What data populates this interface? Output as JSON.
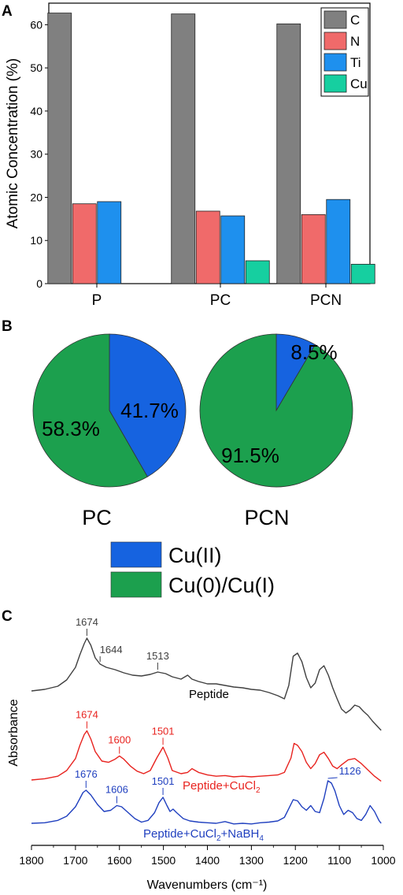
{
  "panels": {
    "a": {
      "letter": "A"
    },
    "b": {
      "letter": "B"
    },
    "c": {
      "letter": "C"
    }
  },
  "chart_data": [
    {
      "id": "bar",
      "type": "bar",
      "ylabel": "Atomic Concentration (%)",
      "ylim": [
        0,
        65
      ],
      "yticks": [
        0,
        10,
        20,
        30,
        40,
        50,
        60
      ],
      "categories": [
        "P",
        "PC",
        "PCN"
      ],
      "legend_position": "top-right",
      "series": [
        {
          "name": "C",
          "color": "#808080",
          "values": [
            62.7,
            62.5,
            60.2
          ]
        },
        {
          "name": "N",
          "color": "#f06a6a",
          "values": [
            18.5,
            16.8,
            16.0
          ]
        },
        {
          "name": "Ti",
          "color": "#1e90ee",
          "values": [
            19.0,
            15.7,
            19.5
          ]
        },
        {
          "name": "Cu",
          "color": "#16cfa0",
          "values": [
            null,
            5.3,
            4.5
          ]
        }
      ]
    },
    {
      "id": "pie-pc",
      "type": "pie",
      "label": "PC",
      "slices": [
        {
          "name": "Cu(II)",
          "value": 41.7,
          "label": "41.7%",
          "color": "#1663e0"
        },
        {
          "name": "Cu(0)/Cu(I)",
          "value": 58.3,
          "label": "58.3%",
          "color": "#1ca04e"
        }
      ]
    },
    {
      "id": "pie-pcn",
      "type": "pie",
      "label": "PCN",
      "slices": [
        {
          "name": "Cu(II)",
          "value": 8.5,
          "label": "8.5%",
          "color": "#1663e0"
        },
        {
          "name": "Cu(0)/Cu(I)",
          "value": 91.5,
          "label": "91.5%",
          "color": "#1ca04e"
        }
      ]
    },
    {
      "id": "ftir",
      "type": "line",
      "xlabel": "Wavenumbers (cm⁻¹)",
      "ylabel": "Absorbance",
      "xlim": [
        1800,
        1000
      ],
      "xticks": [
        1800,
        1700,
        1600,
        1500,
        1400,
        1300,
        1200,
        1100,
        1000
      ],
      "series": [
        {
          "name": "Peptide",
          "label": "Peptide",
          "color": "#404040",
          "x": [
            1800,
            1770,
            1740,
            1720,
            1700,
            1690,
            1680,
            1674,
            1665,
            1655,
            1644,
            1630,
            1610,
            1590,
            1570,
            1550,
            1530,
            1513,
            1495,
            1480,
            1460,
            1445,
            1435,
            1420,
            1400,
            1380,
            1360,
            1340,
            1320,
            1300,
            1280,
            1260,
            1240,
            1225,
            1215,
            1205,
            1195,
            1185,
            1175,
            1165,
            1155,
            1145,
            1135,
            1125,
            1115,
            1105,
            1095,
            1085,
            1075,
            1065,
            1055,
            1045,
            1035,
            1025,
            1015,
            1005
          ],
          "y": [
            0.18,
            0.2,
            0.24,
            0.32,
            0.48,
            0.64,
            0.78,
            0.85,
            0.76,
            0.6,
            0.52,
            0.48,
            0.45,
            0.41,
            0.38,
            0.37,
            0.39,
            0.42,
            0.4,
            0.36,
            0.33,
            0.38,
            0.33,
            0.3,
            0.27,
            0.27,
            0.25,
            0.23,
            0.22,
            0.2,
            0.19,
            0.16,
            0.12,
            0.08,
            0.25,
            0.62,
            0.66,
            0.55,
            0.35,
            0.22,
            0.28,
            0.45,
            0.5,
            0.38,
            0.22,
            0.08,
            -0.05,
            -0.1,
            -0.06,
            0.0,
            -0.02,
            -0.08,
            -0.13,
            -0.2,
            -0.26,
            -0.32
          ]
        },
        {
          "name": "Peptide+CuCl2",
          "label_main": "Peptide+CuCl",
          "label_sub": "2",
          "color": "#e8231f",
          "x": [
            1800,
            1770,
            1740,
            1720,
            1700,
            1690,
            1680,
            1674,
            1665,
            1655,
            1640,
            1625,
            1610,
            1600,
            1590,
            1575,
            1560,
            1545,
            1530,
            1515,
            1501,
            1490,
            1480,
            1460,
            1445,
            1435,
            1420,
            1400,
            1380,
            1360,
            1340,
            1320,
            1300,
            1280,
            1260,
            1240,
            1225,
            1210,
            1203,
            1195,
            1185,
            1175,
            1165,
            1155,
            1145,
            1135,
            1125,
            1115,
            1105,
            1095,
            1080,
            1065,
            1050,
            1035,
            1020,
            1005
          ],
          "y": [
            0.0,
            0.02,
            0.06,
            0.15,
            0.34,
            0.55,
            0.72,
            0.78,
            0.65,
            0.45,
            0.3,
            0.28,
            0.33,
            0.38,
            0.33,
            0.22,
            0.14,
            0.1,
            0.15,
            0.35,
            0.52,
            0.35,
            0.15,
            0.1,
            0.12,
            0.18,
            0.12,
            0.08,
            0.06,
            0.07,
            0.05,
            0.06,
            0.05,
            0.06,
            0.07,
            0.08,
            0.12,
            0.35,
            0.58,
            0.55,
            0.45,
            0.28,
            0.18,
            0.26,
            0.4,
            0.44,
            0.34,
            0.22,
            0.18,
            0.24,
            0.32,
            0.34,
            0.26,
            0.16,
            0.06,
            -0.02
          ]
        },
        {
          "name": "Peptide+CuCl2+NaBH4",
          "label_main": "Peptide+CuCl",
          "label_sub1": "2",
          "label_mid": "+NaBH",
          "label_sub2": "4",
          "color": "#1f3fbf",
          "x": [
            1800,
            1770,
            1740,
            1720,
            1700,
            1690,
            1683,
            1676,
            1665,
            1650,
            1635,
            1620,
            1606,
            1595,
            1580,
            1565,
            1550,
            1535,
            1520,
            1510,
            1501,
            1492,
            1485,
            1478,
            1470,
            1455,
            1440,
            1420,
            1400,
            1380,
            1360,
            1340,
            1320,
            1300,
            1280,
            1260,
            1240,
            1225,
            1215,
            1205,
            1195,
            1185,
            1175,
            1165,
            1155,
            1145,
            1135,
            1126,
            1118,
            1110,
            1100,
            1090,
            1080,
            1070,
            1060,
            1050,
            1040,
            1030,
            1020,
            1010,
            1005
          ],
          "y": [
            0.0,
            0.01,
            0.05,
            0.12,
            0.28,
            0.42,
            0.52,
            0.56,
            0.48,
            0.32,
            0.2,
            0.22,
            0.3,
            0.28,
            0.18,
            0.08,
            0.02,
            0.05,
            0.18,
            0.35,
            0.44,
            0.3,
            0.2,
            0.24,
            0.18,
            0.08,
            0.04,
            0.02,
            0.01,
            0.0,
            0.03,
            -0.01,
            0.0,
            -0.01,
            0.01,
            0.02,
            0.04,
            0.1,
            0.25,
            0.4,
            0.38,
            0.28,
            0.22,
            0.3,
            0.2,
            0.18,
            0.42,
            0.72,
            0.68,
            0.55,
            0.3,
            0.15,
            0.22,
            0.18,
            0.08,
            0.05,
            0.15,
            0.3,
            0.2,
            0.05,
            0.0
          ]
        }
      ],
      "peak_labels": [
        {
          "series": 0,
          "x": 1674,
          "text": "1674"
        },
        {
          "series": 0,
          "x": 1644,
          "text": "1644"
        },
        {
          "series": 0,
          "x": 1513,
          "text": "1513"
        },
        {
          "series": 1,
          "x": 1674,
          "text": "1674"
        },
        {
          "series": 1,
          "x": 1600,
          "text": "1600"
        },
        {
          "series": 1,
          "x": 1501,
          "text": "1501"
        },
        {
          "series": 2,
          "x": 1676,
          "text": "1676"
        },
        {
          "series": 2,
          "x": 1606,
          "text": "1606"
        },
        {
          "series": 2,
          "x": 1501,
          "text": "1501"
        },
        {
          "series": 2,
          "x": 1126,
          "text": "1126"
        }
      ]
    }
  ]
}
